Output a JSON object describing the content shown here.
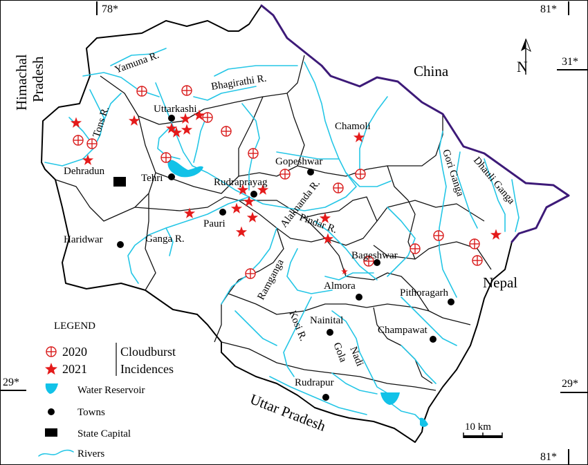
{
  "coordinates": {
    "top_left": "78*",
    "top_right": "81*",
    "right_upper": "31*",
    "left_lower": "29*",
    "right_lower": "29*",
    "bottom_right": "81*"
  },
  "regions": {
    "himachal_line1": "Himachal",
    "himachal_line2": "Pradesh",
    "china": "China",
    "nepal": "Nepal",
    "uttar_pradesh": "Uttar Pradesh"
  },
  "towns": [
    {
      "name": "Uttarkashi"
    },
    {
      "name": "Dehradun"
    },
    {
      "name": "Tehri"
    },
    {
      "name": "Chamoli"
    },
    {
      "name": "Gopeshwar"
    },
    {
      "name": "Rudraprayag"
    },
    {
      "name": "Pauri"
    },
    {
      "name": "Haridwar"
    },
    {
      "name": "Bageshwar"
    },
    {
      "name": "Almora"
    },
    {
      "name": "Pithoragarh"
    },
    {
      "name": "Nainital"
    },
    {
      "name": "Champawat"
    },
    {
      "name": "Rudrapur"
    }
  ],
  "rivers": {
    "yamuna": "Yamuna R.",
    "bhagirathi": "Bhagirathi R.",
    "tons": "Tons R.",
    "ganga": "Ganga R.",
    "alaknanda": "Alaknanda R.",
    "pindar": "Pindar R.",
    "gori": "Gori Ganga",
    "dhauli": "Dhauli Ganga",
    "ramganga": "Ramganga",
    "kosi": "Kosi R.",
    "gola_line1": "Gola",
    "gola_line2": "Nadi"
  },
  "north_arrow": "N",
  "scale_bar": "10 km",
  "legend": {
    "title": "LEGEND",
    "year_2020": "2020",
    "year_2021": "2021",
    "cloudburst": "Cloudburst",
    "incidences": "Incidences",
    "reservoir": "Water Reservoir",
    "towns": "Towns",
    "capital": "State Capital",
    "rivers": "Rivers"
  },
  "colors": {
    "river": "#24c6e6",
    "incident": "#e41a1a",
    "international_border": "#3d1a78"
  },
  "incidences_2020_count": 17,
  "incidences_2021_count": 20
}
